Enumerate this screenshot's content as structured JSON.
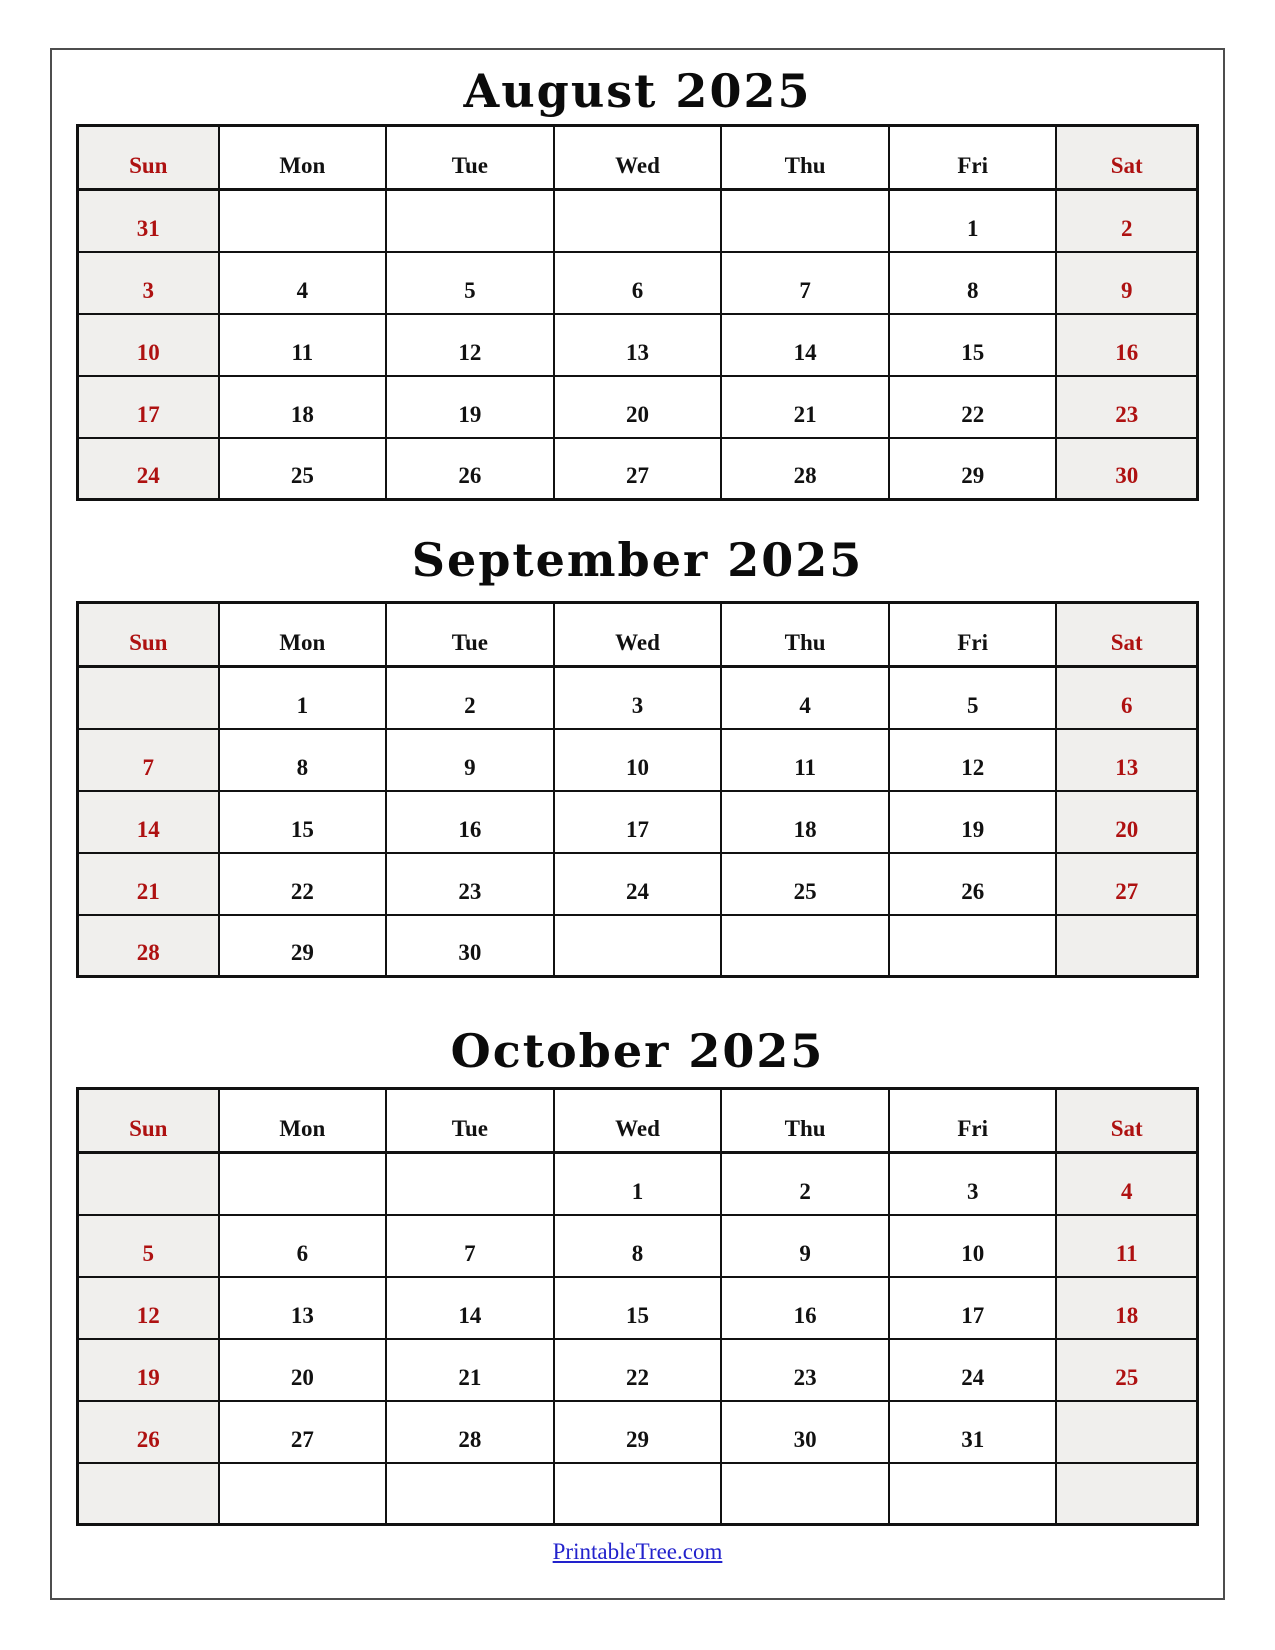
{
  "day_headers": [
    "Sun",
    "Mon",
    "Tue",
    "Wed",
    "Thu",
    "Fri",
    "Sat"
  ],
  "months": [
    {
      "title": "August 2025",
      "weeks": [
        [
          "31",
          "",
          "",
          "",
          "",
          "1",
          "2"
        ],
        [
          "3",
          "4",
          "5",
          "6",
          "7",
          "8",
          "9"
        ],
        [
          "10",
          "11",
          "12",
          "13",
          "14",
          "15",
          "16"
        ],
        [
          "17",
          "18",
          "19",
          "20",
          "21",
          "22",
          "23"
        ],
        [
          "24",
          "25",
          "26",
          "27",
          "28",
          "29",
          "30"
        ]
      ]
    },
    {
      "title": "September 2025",
      "weeks": [
        [
          "",
          "1",
          "2",
          "3",
          "4",
          "5",
          "6"
        ],
        [
          "7",
          "8",
          "9",
          "10",
          "11",
          "12",
          "13"
        ],
        [
          "14",
          "15",
          "16",
          "17",
          "18",
          "19",
          "20"
        ],
        [
          "21",
          "22",
          "23",
          "24",
          "25",
          "26",
          "27"
        ],
        [
          "28",
          "29",
          "30",
          "",
          "",
          "",
          ""
        ]
      ]
    },
    {
      "title": "October 2025",
      "weeks": [
        [
          "",
          "",
          "",
          "1",
          "2",
          "3",
          "4"
        ],
        [
          "5",
          "6",
          "7",
          "8",
          "9",
          "10",
          "11"
        ],
        [
          "12",
          "13",
          "14",
          "15",
          "16",
          "17",
          "18"
        ],
        [
          "19",
          "20",
          "21",
          "22",
          "23",
          "24",
          "25"
        ],
        [
          "26",
          "27",
          "28",
          "29",
          "30",
          "31",
          ""
        ],
        [
          "",
          "",
          "",
          "",
          "",
          "",
          ""
        ]
      ]
    }
  ],
  "footer": {
    "link_label": "PrintableTree.com"
  },
  "colors": {
    "weekend_text": "#ae1111",
    "weekend_bg": "#f0efed",
    "title_text": "#0b0b0b",
    "grid_border": "#111111",
    "footer_link": "#2222cc"
  }
}
